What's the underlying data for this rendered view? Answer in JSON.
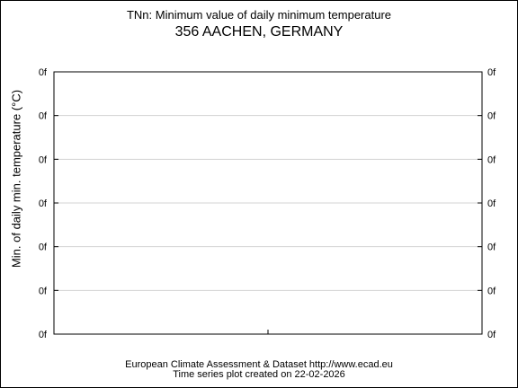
{
  "chart_data": {
    "type": "line",
    "title": "TNn: Minimum value of daily minimum temperature",
    "subtitle": "356 AACHEN, GERMANY",
    "xlabel": "",
    "ylabel": "Min. of daily min. temperature (°C)",
    "ytick_labels": [
      "0f",
      "0f",
      "0f",
      "0f",
      "0f",
      "0f",
      "0f"
    ],
    "x": [],
    "series": [],
    "grid": true,
    "legend": "none"
  },
  "footer": {
    "line1": "European Climate Assessment & Dataset  http://www.ecad.eu",
    "line2": "Time series plot created on 22-02-2026"
  },
  "colors": {
    "background": "#ffffff",
    "axes": "#000000",
    "grid": "#d3d3d3",
    "text": "#000000"
  }
}
